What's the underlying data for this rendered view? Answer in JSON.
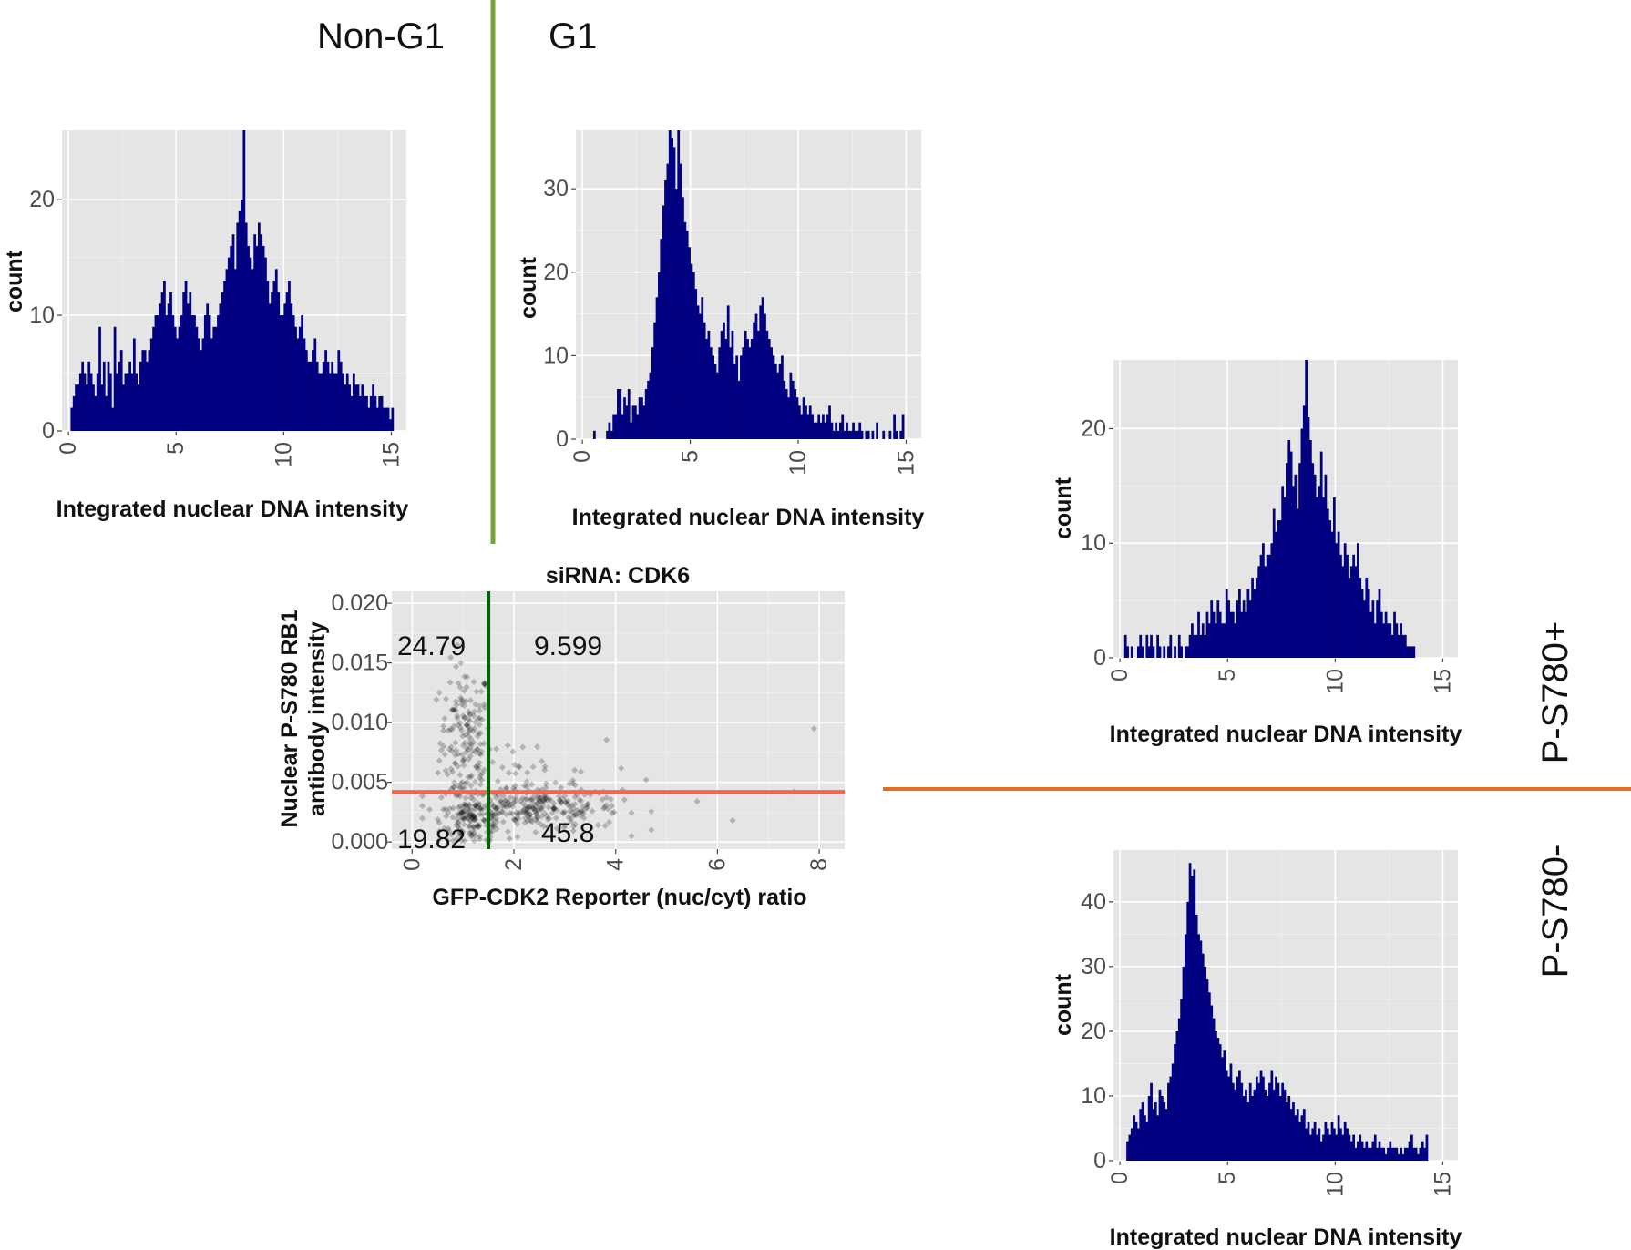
{
  "headers": {
    "non_g1": "Non-G1",
    "g1": "G1",
    "ps780_pos": "P-S780+",
    "ps780_neg": "P-S780-"
  },
  "colors": {
    "bar": "#000080",
    "panel": "#e5e5e5",
    "green_divider": "#7aa03c",
    "orange_divider": "#e07020",
    "green_threshold": "#006400",
    "red_threshold": "#ff6347"
  },
  "chart_data": [
    {
      "id": "hist_nong1",
      "type": "bar",
      "title": "",
      "xlabel": "Integrated nuclear DNA intensity",
      "ylabel": "count",
      "xlim": [
        -0.3,
        15.7
      ],
      "ylim": [
        0,
        26
      ],
      "xticks": [
        0,
        5,
        10,
        15
      ],
      "yticks": [
        0,
        10,
        20
      ],
      "bin_start": 0.1,
      "bin_width": 0.1,
      "values": [
        2,
        3,
        4,
        4,
        5,
        6,
        5,
        4,
        6,
        5,
        4,
        3,
        5,
        9,
        4,
        6,
        3,
        6,
        5,
        2,
        9,
        5,
        6,
        7,
        4,
        5,
        5,
        6,
        5,
        8,
        5,
        4,
        6,
        7,
        7,
        6,
        7,
        8,
        9,
        10,
        10,
        11,
        12,
        13,
        10,
        11,
        12,
        10,
        9,
        8,
        9,
        10,
        12,
        13,
        11,
        12,
        10,
        10,
        9,
        8,
        7,
        8,
        10,
        11,
        10,
        8,
        9,
        9,
        10,
        11,
        12,
        13,
        14,
        15,
        16,
        17,
        14,
        18,
        19,
        20,
        26,
        18,
        16,
        15,
        14,
        17,
        16,
        18,
        17,
        16,
        15,
        13,
        11,
        12,
        13,
        14,
        12,
        10,
        10,
        11,
        12,
        13,
        11,
        10,
        9,
        8,
        9,
        10,
        8,
        7,
        6,
        6,
        7,
        8,
        6,
        5,
        5,
        6,
        7,
        6,
        5,
        6,
        5,
        5,
        7,
        6,
        5,
        4,
        5,
        4,
        3,
        5,
        4,
        4,
        3,
        4,
        3,
        3,
        2,
        3,
        4,
        3,
        2,
        3,
        3,
        2,
        2,
        2,
        1,
        2
      ]
    },
    {
      "id": "hist_g1",
      "type": "bar",
      "title": "",
      "xlabel": "Integrated nuclear DNA intensity",
      "ylabel": "count",
      "xlim": [
        -0.3,
        15.7
      ],
      "ylim": [
        0,
        37
      ],
      "xticks": [
        0,
        5,
        10,
        15
      ],
      "yticks": [
        0,
        10,
        20,
        30
      ],
      "bin_start": 0.5,
      "bin_width": 0.1,
      "values": [
        1,
        0,
        0,
        0,
        0,
        0,
        1,
        2,
        1,
        3,
        3,
        6,
        6,
        3,
        5,
        4,
        6,
        2,
        4,
        4,
        3,
        5,
        5,
        4,
        6,
        7,
        8,
        11,
        14,
        17,
        20,
        24,
        28,
        31,
        33,
        37,
        36,
        35,
        30,
        37,
        33,
        29,
        26,
        25,
        23,
        21,
        20,
        18,
        16,
        15,
        17,
        14,
        12,
        13,
        11,
        10,
        9,
        8,
        11,
        13,
        14,
        12,
        16,
        11,
        13,
        9,
        10,
        7,
        10,
        11,
        13,
        12,
        11,
        12,
        14,
        15,
        13,
        16,
        17,
        15,
        13,
        12,
        11,
        10,
        9,
        8,
        9,
        10,
        7,
        6,
        5,
        8,
        7,
        6,
        5,
        4,
        3,
        5,
        4,
        3,
        4,
        3,
        2,
        2,
        3,
        2,
        3,
        2,
        3,
        4,
        2,
        1,
        2,
        1,
        2,
        3,
        1,
        2,
        1,
        1,
        2,
        1,
        1,
        2,
        1,
        0,
        1,
        1,
        0,
        1,
        0,
        2,
        0,
        0,
        1,
        0,
        0,
        1,
        0,
        3,
        1,
        0,
        1,
        3
      ]
    },
    {
      "id": "hist_pos",
      "type": "bar",
      "title": "",
      "xlabel": "Integrated nuclear DNA intensity",
      "ylabel": "count",
      "xlim": [
        -0.3,
        15.7
      ],
      "ylim": [
        0,
        26
      ],
      "xticks": [
        0,
        5,
        10,
        15
      ],
      "yticks": [
        0,
        10,
        20
      ],
      "bin_start": 0.2,
      "bin_width": 0.1,
      "values": [
        2,
        1,
        0,
        1,
        0,
        0,
        1,
        2,
        1,
        0,
        2,
        1,
        2,
        1,
        0,
        2,
        1,
        0,
        1,
        0,
        1,
        2,
        0,
        1,
        0,
        2,
        1,
        0,
        1,
        1,
        2,
        3,
        2,
        2,
        4,
        2,
        3,
        2,
        4,
        3,
        5,
        4,
        3,
        5,
        4,
        3,
        3,
        6,
        5,
        4,
        4,
        3,
        5,
        6,
        4,
        5,
        4,
        6,
        5,
        7,
        6,
        7,
        8,
        9,
        10,
        8,
        9,
        9,
        10,
        13,
        11,
        12,
        12,
        15,
        14,
        17,
        19,
        18,
        15,
        16,
        13,
        17,
        20,
        22,
        26,
        21,
        19,
        17,
        16,
        14,
        15,
        18,
        14,
        16,
        13,
        12,
        11,
        14,
        10,
        11,
        9,
        8,
        10,
        9,
        7,
        8,
        9,
        8,
        10,
        7,
        6,
        5,
        7,
        6,
        4,
        5,
        3,
        5,
        6,
        4,
        3,
        4,
        3,
        3,
        2,
        4,
        3,
        2,
        3,
        2,
        2,
        1,
        1,
        1,
        1
      ]
    },
    {
      "id": "hist_neg",
      "type": "bar",
      "title": "",
      "xlabel": "Integrated nuclear DNA intensity",
      "ylabel": "count",
      "xlim": [
        -0.3,
        15.7
      ],
      "ylim": [
        0,
        48
      ],
      "xticks": [
        0,
        5,
        10,
        15
      ],
      "yticks": [
        0,
        10,
        20,
        30,
        40
      ],
      "bin_start": 0.3,
      "bin_width": 0.1,
      "values": [
        3,
        4,
        5,
        7,
        6,
        5,
        8,
        9,
        7,
        6,
        10,
        12,
        8,
        9,
        7,
        11,
        10,
        9,
        8,
        12,
        13,
        15,
        18,
        20,
        22,
        25,
        30,
        35,
        40,
        46,
        44,
        45,
        38,
        35,
        34,
        32,
        30,
        28,
        26,
        24,
        22,
        20,
        19,
        18,
        16,
        17,
        14,
        13,
        15,
        12,
        11,
        13,
        14,
        12,
        10,
        11,
        9,
        12,
        10,
        11,
        13,
        12,
        14,
        13,
        11,
        10,
        12,
        14,
        11,
        13,
        12,
        10,
        12,
        11,
        9,
        10,
        8,
        9,
        7,
        8,
        6,
        7,
        8,
        5,
        6,
        4,
        5,
        6,
        4,
        5,
        3,
        4,
        6,
        5,
        4,
        6,
        5,
        4,
        7,
        5,
        4,
        6,
        5,
        4,
        3,
        4,
        2,
        3,
        4,
        3,
        2,
        3,
        2,
        2,
        3,
        4,
        2,
        3,
        2,
        2,
        1,
        2,
        3,
        2,
        2,
        2,
        1,
        2,
        1,
        2,
        2,
        3,
        4,
        2,
        2,
        1,
        2,
        3,
        2,
        4
      ]
    },
    {
      "id": "scatter",
      "type": "scatter",
      "title": "siRNA: CDK6",
      "xlabel": "GFP-CDK2 Reporter (nuc/cyt) ratio",
      "ylabel": "Nuclear P-S780 RB1 antibody intensity",
      "ylabel_lines": [
        "Nuclear P-S780 RB1",
        "antibody intensity"
      ],
      "xlim": [
        -0.4,
        8.5
      ],
      "ylim": [
        -0.0006,
        0.021
      ],
      "xticks": [
        0,
        2,
        4,
        6,
        8
      ],
      "ytick_values": [
        0.0,
        0.005,
        0.01,
        0.015,
        0.02
      ],
      "ytick_labels": [
        "0.000",
        "0.005",
        "0.010",
        "0.015",
        "0.020"
      ],
      "threshold_x": 1.5,
      "threshold_y": 0.0042,
      "quadrant_labels": {
        "top_left": "24.79",
        "top_right": "9.599",
        "bottom_left": "19.82",
        "bottom_right": "45.8"
      },
      "clusters": [
        {
          "x_mean": 1.05,
          "x_sd": 0.25,
          "y_mean": 0.0085,
          "y_sd": 0.0032,
          "n": 170
        },
        {
          "x_mean": 2.4,
          "x_sd": 0.85,
          "y_mean": 0.0028,
          "y_sd": 0.0009,
          "n": 260
        },
        {
          "x_mean": 1.2,
          "x_sd": 0.3,
          "y_mean": 0.0018,
          "y_sd": 0.0009,
          "n": 120
        },
        {
          "x_mean": 2.0,
          "x_sd": 0.9,
          "y_mean": 0.0055,
          "y_sd": 0.0015,
          "n": 40
        }
      ],
      "outliers": [
        [
          7.9,
          0.0095
        ],
        [
          7.5,
          0.0042
        ],
        [
          6.3,
          0.0018
        ],
        [
          5.6,
          0.0034
        ],
        [
          4.6,
          0.0052
        ]
      ]
    }
  ]
}
